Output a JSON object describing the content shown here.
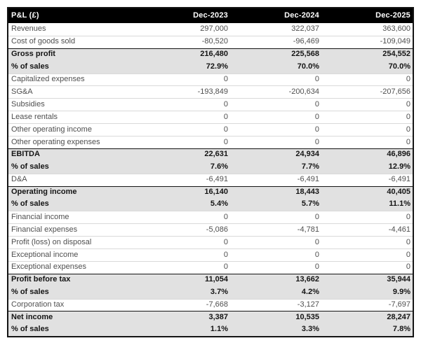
{
  "chart_data": {
    "type": "table",
    "title": "P&L (£)",
    "columns": [
      "Dec-2023",
      "Dec-2024",
      "Dec-2025"
    ],
    "rows": [
      {
        "label": "Revenues",
        "values": [
          "297,000",
          "322,037",
          "363,600"
        ],
        "emphasis": false,
        "divider": "none"
      },
      {
        "label": "Cost of goods sold",
        "values": [
          "-80,520",
          "-96,469",
          "-109,049"
        ],
        "emphasis": false,
        "divider": "light"
      },
      {
        "label": "Gross profit",
        "values": [
          "216,480",
          "225,568",
          "254,552"
        ],
        "emphasis": true,
        "divider": "dark"
      },
      {
        "label": "% of sales",
        "values": [
          "72.9%",
          "70.0%",
          "70.0%"
        ],
        "emphasis": true,
        "divider": "none"
      },
      {
        "label": "Capitalized expenses",
        "values": [
          "0",
          "0",
          "0"
        ],
        "emphasis": false,
        "divider": "light"
      },
      {
        "label": "SG&A",
        "values": [
          "-193,849",
          "-200,634",
          "-207,656"
        ],
        "emphasis": false,
        "divider": "light"
      },
      {
        "label": "Subsidies",
        "values": [
          "0",
          "0",
          "0"
        ],
        "emphasis": false,
        "divider": "light"
      },
      {
        "label": "Lease rentals",
        "values": [
          "0",
          "0",
          "0"
        ],
        "emphasis": false,
        "divider": "light"
      },
      {
        "label": "Other operating income",
        "values": [
          "0",
          "0",
          "0"
        ],
        "emphasis": false,
        "divider": "light"
      },
      {
        "label": "Other operating expenses",
        "values": [
          "0",
          "0",
          "0"
        ],
        "emphasis": false,
        "divider": "light"
      },
      {
        "label": "EBITDA",
        "values": [
          "22,631",
          "24,934",
          "46,896"
        ],
        "emphasis": true,
        "divider": "dark"
      },
      {
        "label": "% of sales",
        "values": [
          "7.6%",
          "7.7%",
          "12.9%"
        ],
        "emphasis": true,
        "divider": "none"
      },
      {
        "label": "D&A",
        "values": [
          "-6,491",
          "-6,491",
          "-6,491"
        ],
        "emphasis": false,
        "divider": "light"
      },
      {
        "label": "Operating income",
        "values": [
          "16,140",
          "18,443",
          "40,405"
        ],
        "emphasis": true,
        "divider": "dark"
      },
      {
        "label": "% of sales",
        "values": [
          "5.4%",
          "5.7%",
          "11.1%"
        ],
        "emphasis": true,
        "divider": "none"
      },
      {
        "label": "Financial income",
        "values": [
          "0",
          "0",
          "0"
        ],
        "emphasis": false,
        "divider": "light"
      },
      {
        "label": "Financial expenses",
        "values": [
          "-5,086",
          "-4,781",
          "-4,461"
        ],
        "emphasis": false,
        "divider": "light"
      },
      {
        "label": "Profit (loss) on disposal",
        "values": [
          "0",
          "0",
          "0"
        ],
        "emphasis": false,
        "divider": "light"
      },
      {
        "label": "Exceptional income",
        "values": [
          "0",
          "0",
          "0"
        ],
        "emphasis": false,
        "divider": "light"
      },
      {
        "label": "Exceptional expenses",
        "values": [
          "0",
          "0",
          "0"
        ],
        "emphasis": false,
        "divider": "light"
      },
      {
        "label": "Profit before tax",
        "values": [
          "11,054",
          "13,662",
          "35,944"
        ],
        "emphasis": true,
        "divider": "dark"
      },
      {
        "label": "% of sales",
        "values": [
          "3.7%",
          "4.2%",
          "9.9%"
        ],
        "emphasis": true,
        "divider": "none"
      },
      {
        "label": "Corporation tax",
        "values": [
          "-7,668",
          "-3,127",
          "-7,697"
        ],
        "emphasis": false,
        "divider": "light"
      },
      {
        "label": "Net income",
        "values": [
          "3,387",
          "10,535",
          "28,247"
        ],
        "emphasis": true,
        "divider": "dark"
      },
      {
        "label": "% of sales",
        "values": [
          "1.1%",
          "3.3%",
          "7.8%"
        ],
        "emphasis": true,
        "divider": "none"
      }
    ],
    "layout": {
      "legend": "none",
      "grid": "horizontal-dividers",
      "value_alignment": "right"
    }
  },
  "colors": {
    "header_bg": "#000000",
    "header_text": "#ffffff",
    "section_row_bg": "#e1e1e1",
    "section_row_text": "#141414",
    "plain_row_text": "#4f4f4f",
    "divider_light": "#d9d9d9",
    "divider_dark": "#141414",
    "outer_border": "#141414",
    "page_bg": "#ffffff"
  }
}
